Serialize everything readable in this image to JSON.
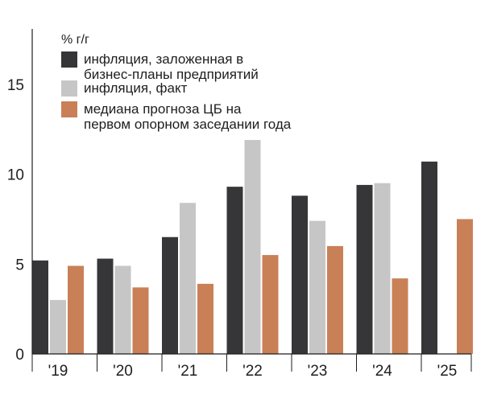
{
  "chart_data": {
    "type": "bar",
    "ylabel": "% г/г",
    "ylim": [
      0,
      18
    ],
    "yticks": [
      0,
      5,
      10,
      15
    ],
    "categories": [
      "'19",
      "'20",
      "'21",
      "'22",
      "'23",
      "'24",
      "'25"
    ],
    "series": [
      {
        "name": "инфляция, заложенная в бизнес-планы предприятий",
        "color": "#363639",
        "values": [
          5.2,
          5.3,
          6.5,
          9.3,
          8.8,
          9.4,
          10.7
        ]
      },
      {
        "name": "инфляция, факт",
        "color": "#c6c6c6",
        "values": [
          3.0,
          4.9,
          8.4,
          11.9,
          7.4,
          9.5,
          null
        ]
      },
      {
        "name": "медиана прогноза ЦБ на первом опорном заседании года",
        "color": "#c98057",
        "values": [
          4.9,
          3.7,
          3.9,
          5.5,
          6.0,
          4.2,
          7.5
        ]
      }
    ],
    "legend": {
      "placement": "top-left",
      "entries": [
        {
          "lines": [
            "инфляция, заложенная в",
            "бизнес-планы предприятий"
          ]
        },
        {
          "lines": [
            "инфляция, факт"
          ]
        },
        {
          "lines": [
            "медиана прогноза ЦБ на",
            "первом опорном заседании года"
          ]
        }
      ]
    },
    "grid": false
  }
}
